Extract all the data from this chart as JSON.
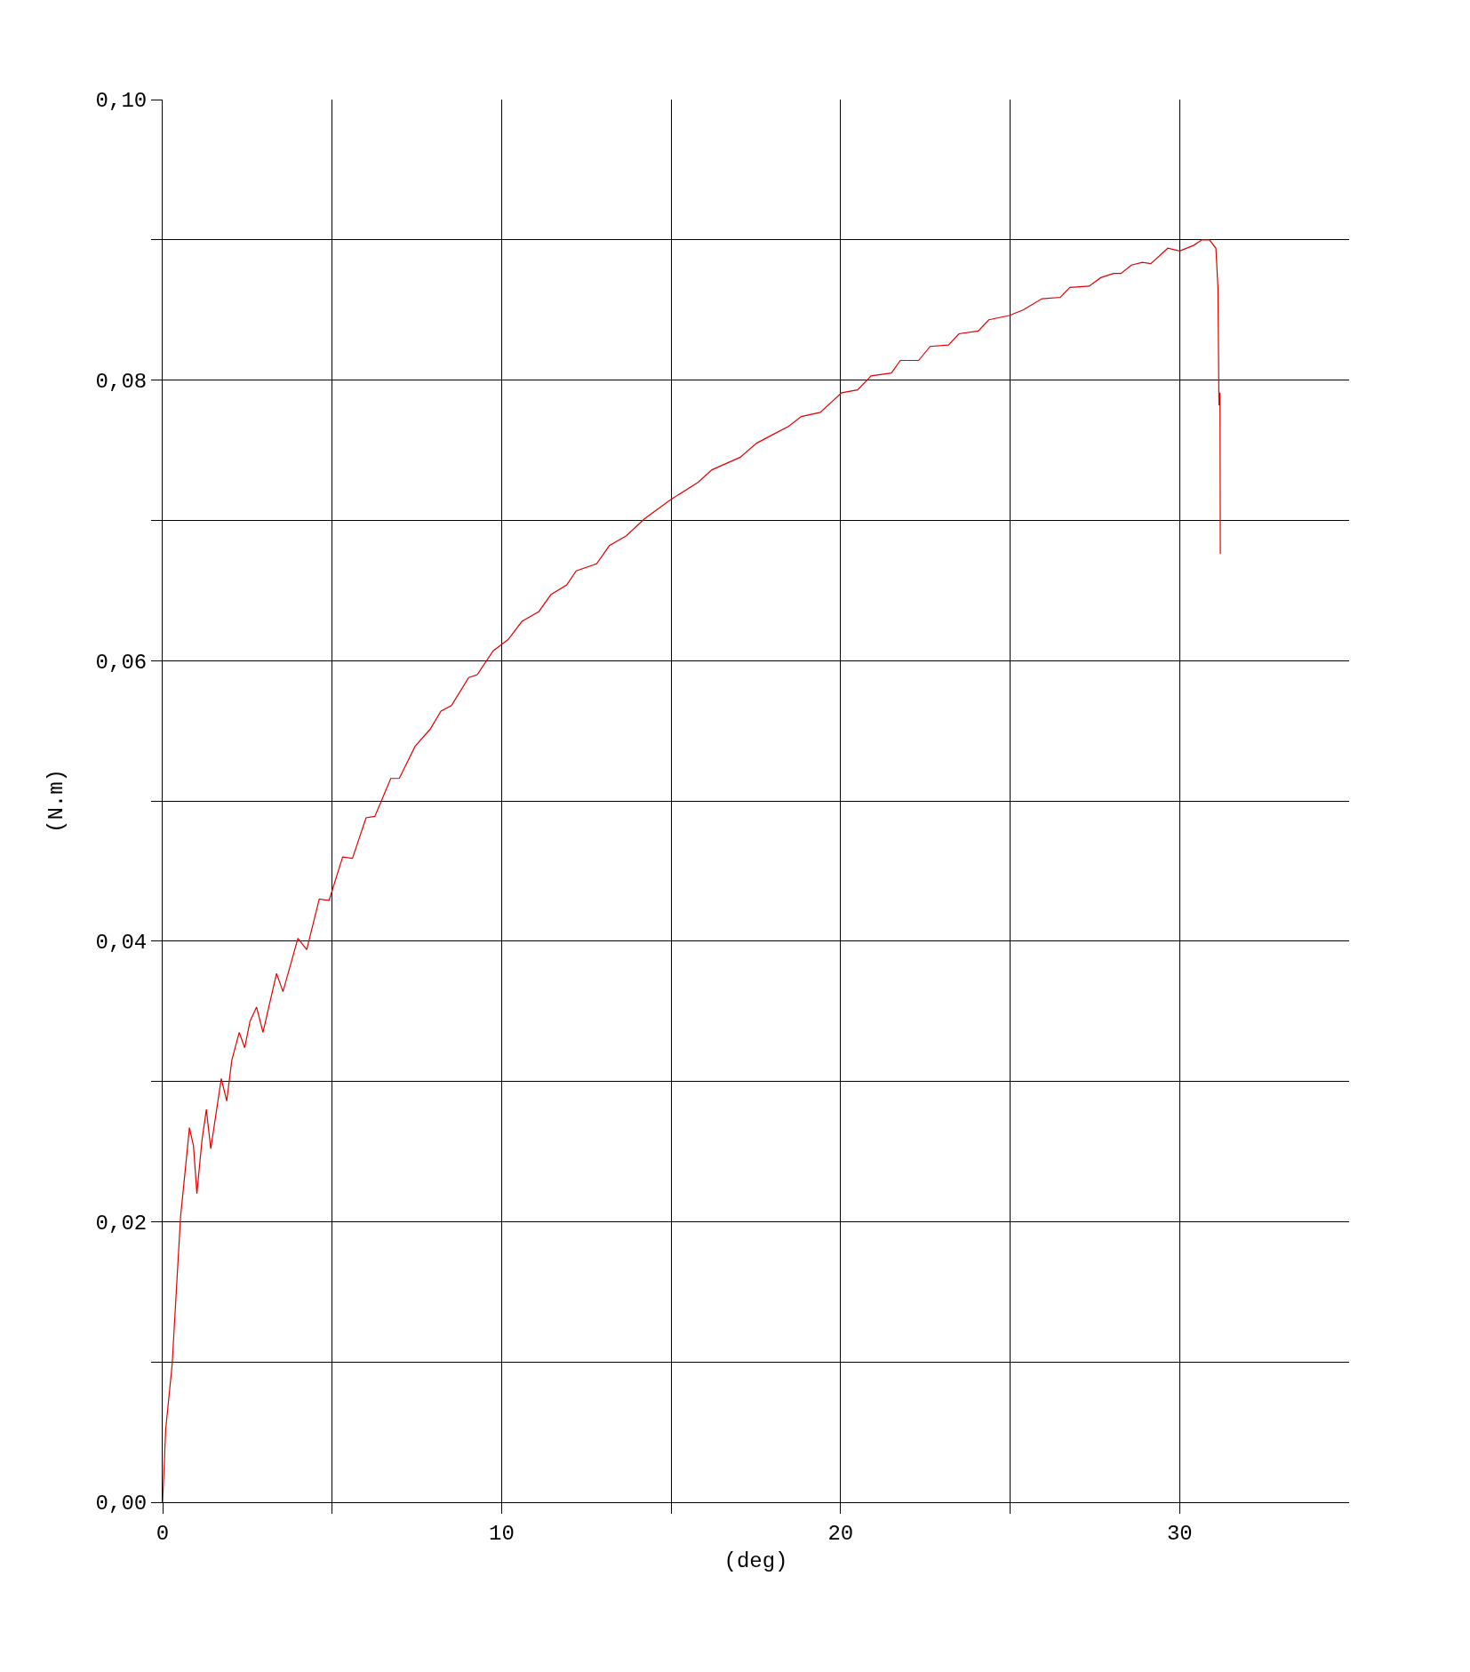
{
  "chart_data": {
    "type": "line",
    "xlabel": "(deg)",
    "ylabel": "(N.m)",
    "x": [
      0,
      0.09,
      0.28,
      0.53,
      0.66,
      0.79,
      0.91,
      1.01,
      1.16,
      1.29,
      1.42,
      1.73,
      1.89,
      2.04,
      2.26,
      2.42,
      2.58,
      2.77,
      2.96,
      3.36,
      3.55,
      3.99,
      4.25,
      4.62,
      4.91,
      5.31,
      5.6,
      6.0,
      6.26,
      6.73,
      6.98,
      7.45,
      7.89,
      8.21,
      8.52,
      9.03,
      9.28,
      9.75,
      10.19,
      10.6,
      11.1,
      11.45,
      11.92,
      12.2,
      12.8,
      13.18,
      13.68,
      14.21,
      15.0,
      15.79,
      16.2,
      17.04,
      17.52,
      17.99,
      18.46,
      18.84,
      19.4,
      20.03,
      20.5,
      20.9,
      21.5,
      21.76,
      22.3,
      22.64,
      23.18,
      23.49,
      24.06,
      24.37,
      24.97,
      25.38,
      25.94,
      26.48,
      26.76,
      27.33,
      27.67,
      28.05,
      28.27,
      28.58,
      28.9,
      29.15,
      29.65,
      30.0,
      30.41,
      30.66,
      30.88,
      31.07,
      31.13,
      31.16,
      31.19,
      31.2
    ],
    "series": [
      {
        "color": "#e00000",
        "values": [
          0,
          0.0052,
          0.0098,
          0.0204,
          0.0235,
          0.0267,
          0.0254,
          0.022,
          0.0258,
          0.028,
          0.0252,
          0.0302,
          0.0286,
          0.0315,
          0.0335,
          0.0324,
          0.0343,
          0.0353,
          0.0335,
          0.0377,
          0.0364,
          0.0402,
          0.0394,
          0.043,
          0.0429,
          0.046,
          0.0459,
          0.0488,
          0.0489,
          0.0516,
          0.0516,
          0.0539,
          0.0551,
          0.0564,
          0.0568,
          0.0588,
          0.059,
          0.0607,
          0.0615,
          0.0628,
          0.0635,
          0.0647,
          0.0654,
          0.0664,
          0.0669,
          0.0682,
          0.0689,
          0.0701,
          0.0715,
          0.0727,
          0.0736,
          0.0745,
          0.0755,
          0.0761,
          0.0767,
          0.0774,
          0.0777,
          0.0791,
          0.0793,
          0.0803,
          0.0805,
          0.0814,
          0.0814,
          0.0824,
          0.0825,
          0.0833,
          0.0835,
          0.0843,
          0.0846,
          0.085,
          0.0858,
          0.0859,
          0.0866,
          0.0867,
          0.0873,
          0.0876,
          0.0876,
          0.0882,
          0.0884,
          0.0883,
          0.0894,
          0.0892,
          0.0896,
          0.09,
          0.09,
          0.0894,
          0.0866,
          0.0782,
          0.0791,
          0.0676
        ]
      }
    ],
    "xlim": [
      0,
      35
    ],
    "xticks": [
      0,
      {
        "value": 5,
        "label": null
      },
      10,
      {
        "value": 15,
        "label": null
      },
      20,
      {
        "value": 25,
        "label": null
      },
      30
    ],
    "ylim": [
      0,
      0.1
    ],
    "yticks": [
      {
        "value": 0,
        "label": "0,00"
      },
      {
        "value": 0.01,
        "label": null
      },
      {
        "value": 0.02,
        "label": "0,02"
      },
      {
        "value": 0.03,
        "label": null
      },
      {
        "value": 0.04,
        "label": "0,04"
      },
      {
        "value": 0.05,
        "label": null
      },
      {
        "value": 0.06,
        "label": "0,06"
      },
      {
        "value": 0.07,
        "label": null
      },
      {
        "value": 0.08,
        "label": "0,08"
      },
      {
        "value": 0.09,
        "label": null
      },
      {
        "value": 0.1,
        "label": "0,10"
      }
    ],
    "grid": true,
    "marker": "none",
    "line_style": "solid"
  }
}
